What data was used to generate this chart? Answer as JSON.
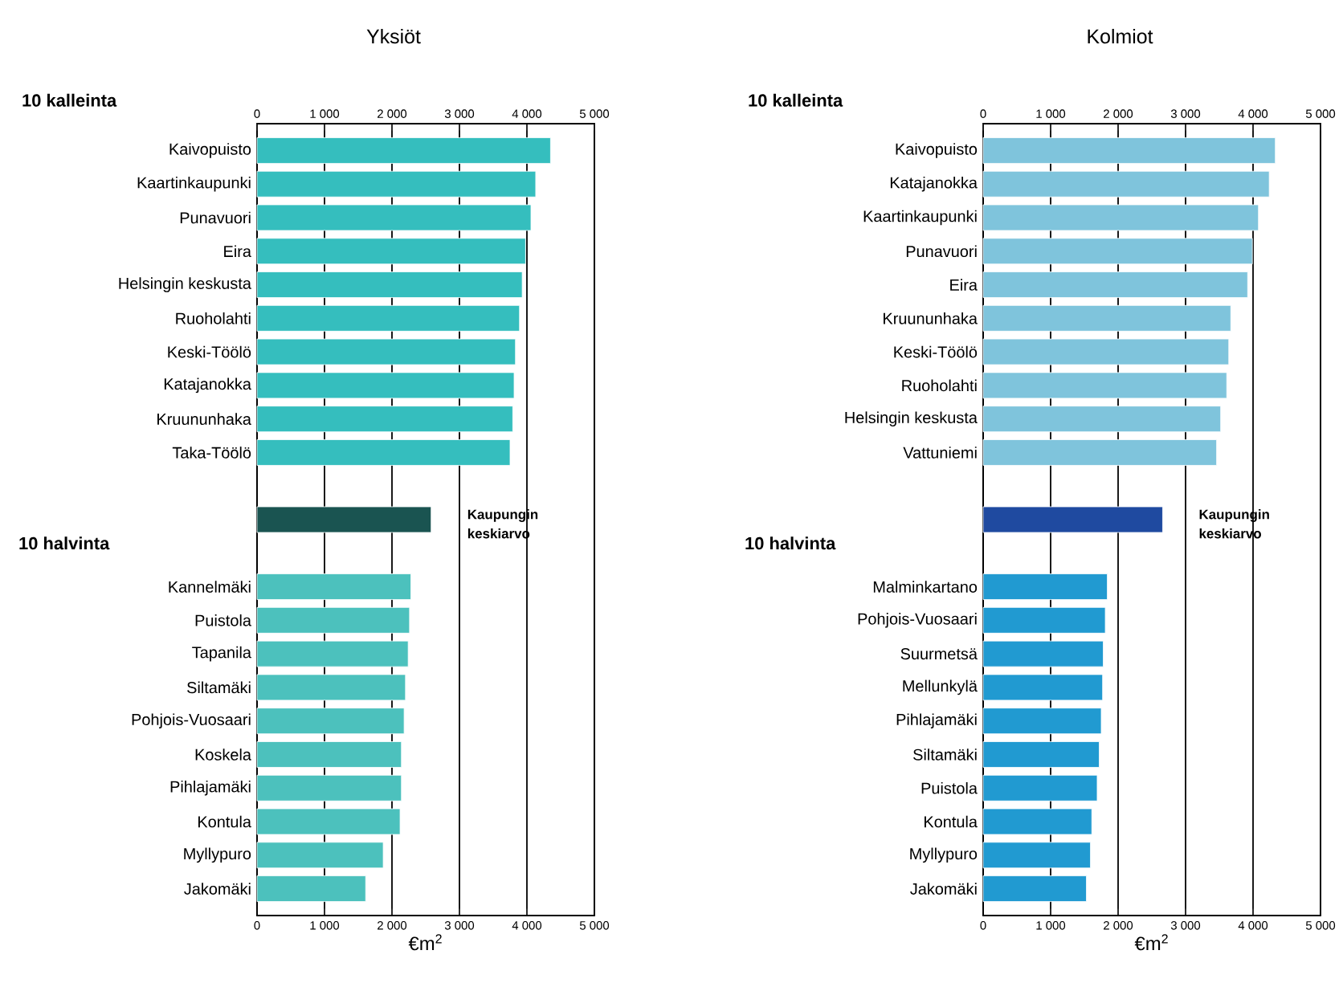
{
  "chart_data": [
    {
      "type": "bar",
      "orientation": "horizontal",
      "title": "Yksiöt",
      "xlabel": "€m$^{2}$",
      "categories": [
        "Kaivopuisto",
        "Kaartinkaupunki",
        "Punavuori",
        "Eira",
        "Helsingin keskusta",
        "Ruoholahti",
        "Keski-Töölö",
        "Katajanokka",
        "Kruununhaka",
        "Taka-Töölö",
        null,
        null,
        null,
        "Kannelmäki",
        "Puistola",
        "Tapanila",
        "Siltamäki",
        "Pohjois-Vuosaari",
        "Koskela",
        "Pihlajamäki",
        "Kontula",
        "Myllypuro",
        "Jakomäki"
      ],
      "values": [
        4350,
        4130,
        4060,
        3980,
        3930,
        3890,
        3830,
        3810,
        3790,
        3750,
        null,
        2580,
        null,
        2280,
        2260,
        2240,
        2200,
        2180,
        2140,
        2140,
        2120,
        1870,
        1610
      ],
      "colors": [
        "#35bebe",
        "#35bebe",
        "#35bebe",
        "#35bebe",
        "#35bebe",
        "#35bebe",
        "#35bebe",
        "#35bebe",
        "#35bebe",
        "#35bebe",
        null,
        "#1a5451",
        null,
        "#4cc1bd",
        "#4cc1bd",
        "#4cc1bd",
        "#4cc1bd",
        "#4cc1bd",
        "#4cc1bd",
        "#4cc1bd",
        "#4cc1bd",
        "#4cc1bd",
        "#4cc1bd"
      ],
      "xlim": [
        0,
        5000
      ],
      "xticks": [
        0,
        {
          "value": 1000,
          "label": "1 000"
        },
        {
          "value": 2000,
          "label": "2 000"
        },
        {
          "value": 3000,
          "label": "3 000"
        },
        {
          "value": 4000,
          "label": "4 000"
        },
        {
          "value": 5000,
          "label": "5 000"
        }
      ],
      "x2lim": [
        0,
        5000
      ],
      "x2ticks": [
        0,
        {
          "value": 1000,
          "label": "1 000"
        },
        {
          "value": 2000,
          "label": "2 000"
        },
        {
          "value": 3000,
          "label": "3 000"
        },
        {
          "value": 4000,
          "label": "4 000"
        },
        {
          "value": 5000,
          "label": "5 000"
        }
      ],
      "grid": "x",
      "annotations": [
        "10 kalleinta",
        "Kaupungin keskiarvo",
        "10 halvinta"
      ]
    },
    {
      "type": "bar",
      "orientation": "horizontal",
      "title": "Kolmiot",
      "xlabel": "€m$^{2}$",
      "categories": [
        "Kaivopuisto",
        "Katajanokka",
        "Kaartinkaupunki",
        "Punavuori",
        "Eira",
        "Kruununhaka",
        "Keski-Töölö",
        "Ruoholahti",
        "Helsingin keskusta",
        "Vattuniemi",
        null,
        null,
        null,
        "Malminkartano",
        "Pohjois-Vuosaari",
        "Suurmetsä",
        "Mellunkylä",
        "Pihlajamäki",
        "Siltamäki",
        "Puistola",
        "Kontula",
        "Myllypuro",
        "Jakomäki"
      ],
      "values": [
        4330,
        4240,
        4080,
        3990,
        3920,
        3670,
        3640,
        3610,
        3520,
        3460,
        null,
        2660,
        null,
        1840,
        1810,
        1780,
        1770,
        1750,
        1720,
        1690,
        1610,
        1590,
        1530
      ],
      "colors": [
        "#7fc4dc",
        "#7fc4dc",
        "#7fc4dc",
        "#7fc4dc",
        "#7fc4dc",
        "#7fc4dc",
        "#7fc4dc",
        "#7fc4dc",
        "#7fc4dc",
        "#7fc4dc",
        null,
        "#1f4aa0",
        null,
        "#219ad1",
        "#219ad1",
        "#219ad1",
        "#219ad1",
        "#219ad1",
        "#219ad1",
        "#219ad1",
        "#219ad1",
        "#219ad1",
        "#219ad1"
      ],
      "xlim": [
        0,
        5000
      ],
      "xticks": [
        0,
        {
          "value": 1000,
          "label": "1 000"
        },
        {
          "value": 2000,
          "label": "2 000"
        },
        {
          "value": 3000,
          "label": "3 000"
        },
        {
          "value": 4000,
          "label": "4 000"
        },
        {
          "value": 5000,
          "label": "5 000"
        }
      ],
      "x2lim": [
        0,
        5000
      ],
      "x2ticks": [
        0,
        {
          "value": 1000,
          "label": "1 000"
        },
        {
          "value": 2000,
          "label": "2 000"
        },
        {
          "value": 3000,
          "label": "3 000"
        },
        {
          "value": 4000,
          "label": "4 000"
        },
        {
          "value": 5000,
          "label": "5 000"
        }
      ],
      "grid": "x",
      "annotations": [
        "10 kalleinta",
        "Kaupungin keskiarvo",
        "10 halvinta"
      ]
    }
  ]
}
